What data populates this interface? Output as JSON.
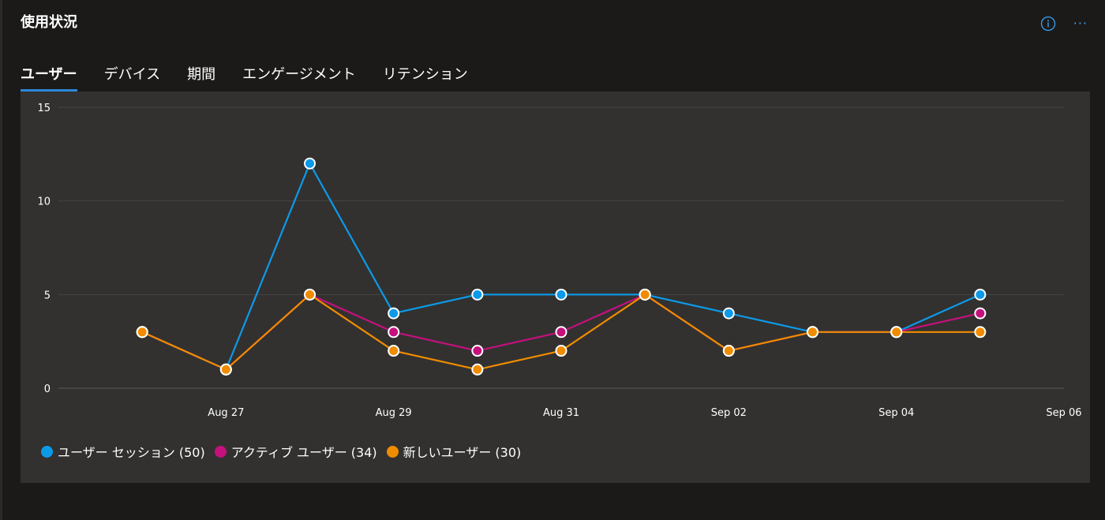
{
  "header": {
    "title": "使用状況",
    "info_icon": "info-icon",
    "more_icon": "more-icon"
  },
  "tabs": [
    {
      "label": "ユーザー",
      "active": true
    },
    {
      "label": "デバイス",
      "active": false
    },
    {
      "label": "期間",
      "active": false
    },
    {
      "label": "エンゲージメント",
      "active": false
    },
    {
      "label": "リテンション",
      "active": false
    }
  ],
  "colors": {
    "accent": "#2b88d8",
    "series_sessions": "#0c9ae8",
    "series_active": "#c5107d",
    "series_new": "#f08c00",
    "grid": "#464545",
    "axis_text": "#ffffff"
  },
  "chart_data": {
    "type": "line",
    "ylim": [
      0,
      15
    ],
    "yticks": [
      "0",
      "5",
      "10",
      "15"
    ],
    "x": [
      "Aug 26",
      "Aug 27",
      "Aug 28",
      "Aug 29",
      "Aug 30",
      "Aug 31",
      "Sep 01",
      "Sep 02",
      "Sep 03",
      "Sep 04",
      "Sep 05"
    ],
    "x_domain": [
      "Aug 25",
      "Sep 06"
    ],
    "xticks": [
      {
        "label": "Aug 27"
      },
      {
        "label": "Aug 29"
      },
      {
        "label": "Aug 31"
      },
      {
        "label": "Sep 02"
      },
      {
        "label": "Sep 04"
      },
      {
        "label": "Sep 06"
      }
    ],
    "grid": true,
    "series": [
      {
        "key": "sessions",
        "label": "ユーザー セッション (50)",
        "color": "#0c9ae8",
        "values": [
          3,
          1,
          12,
          4,
          5,
          5,
          5,
          4,
          3,
          3,
          5
        ]
      },
      {
        "key": "active",
        "label": "アクティブ ユーザー (34)",
        "color": "#c5107d",
        "values": [
          3,
          1,
          5,
          3,
          2,
          3,
          5,
          2,
          3,
          3,
          4
        ]
      },
      {
        "key": "new",
        "label": "新しいユーザー (30)",
        "color": "#f08c00",
        "values": [
          3,
          1,
          5,
          2,
          1,
          2,
          5,
          2,
          3,
          3,
          3
        ]
      }
    ]
  }
}
